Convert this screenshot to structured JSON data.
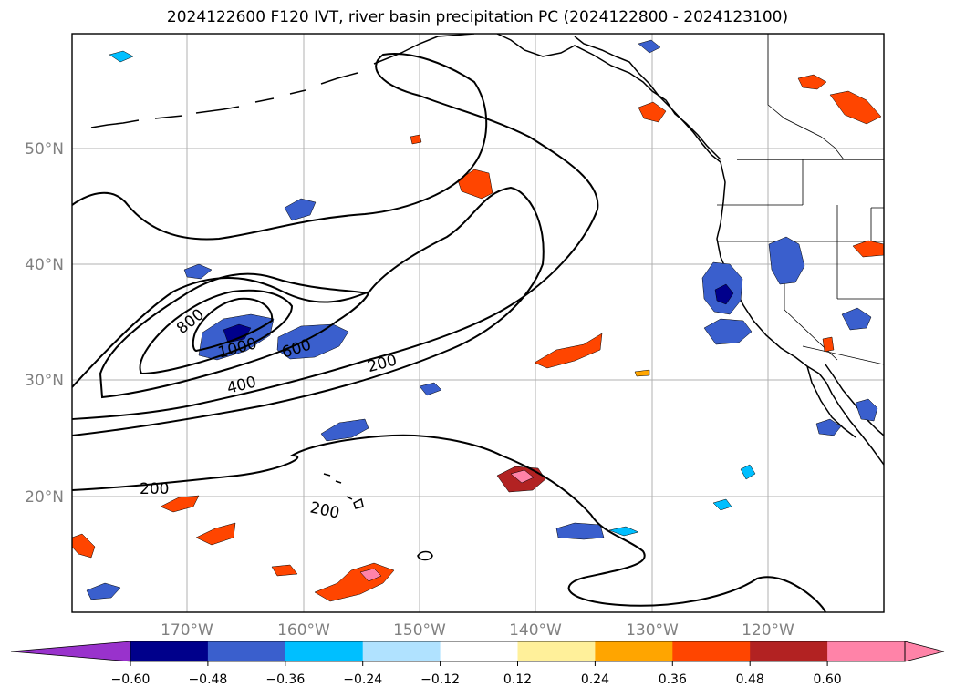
{
  "map": {
    "title": "2024122600 F120 IVT, river basin precipitation PC (2024122800 - 2024123100)",
    "lon_labels": [
      "170°W",
      "160°W",
      "150°W",
      "140°W",
      "130°W",
      "120°W"
    ],
    "lat_labels": [
      "50°N",
      "40°N",
      "30°N",
      "20°N"
    ],
    "contour_labels": [
      "800",
      "1000",
      "600",
      "400",
      "200",
      "200",
      "200"
    ],
    "gridline_color": "#b0b0b0",
    "tick_label_color": "#808080"
  },
  "colorbar": {
    "tick_labels": [
      "−0.60",
      "−0.48",
      "−0.36",
      "−0.24",
      "−0.12",
      "0.12",
      "0.24",
      "0.36",
      "0.48",
      "0.60"
    ],
    "colors": [
      "#9932cc",
      "#00008b",
      "#3a5fcd",
      "#00bfff",
      "#b0e2ff",
      "#ffffff",
      "#fff09a",
      "#ffa500",
      "#ff4500",
      "#b22222",
      "#ff83a8",
      "#ff83a8"
    ]
  }
}
